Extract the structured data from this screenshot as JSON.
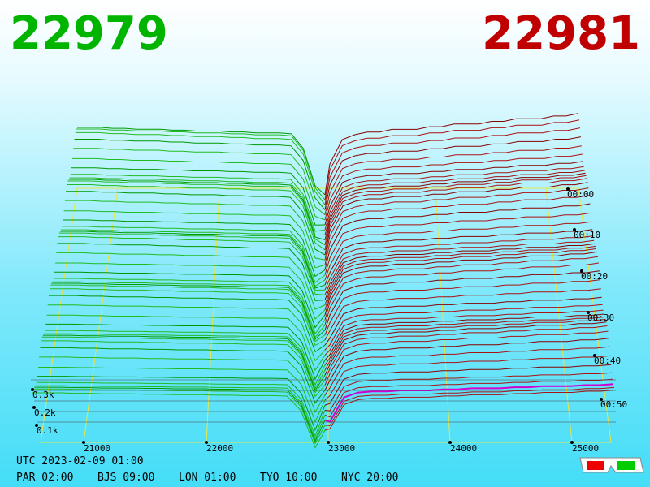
{
  "header": {
    "bid": "22979",
    "ask": "22981"
  },
  "price_axis": [
    "21000",
    "22000",
    "23000",
    "24000",
    "25000"
  ],
  "time_axis": [
    "00:00",
    "00:10",
    "00:20",
    "00:30",
    "00:40",
    "00:50"
  ],
  "volume_axis": [
    "0.3k",
    "0.2k",
    "0.1k"
  ],
  "footer": {
    "utc": "UTC 2023-02-09 01:00",
    "zones": [
      "PAR 02:00",
      "BJS 09:00",
      "LON 01:00",
      "TYO 10:00",
      "NYC 20:00"
    ]
  }
}
